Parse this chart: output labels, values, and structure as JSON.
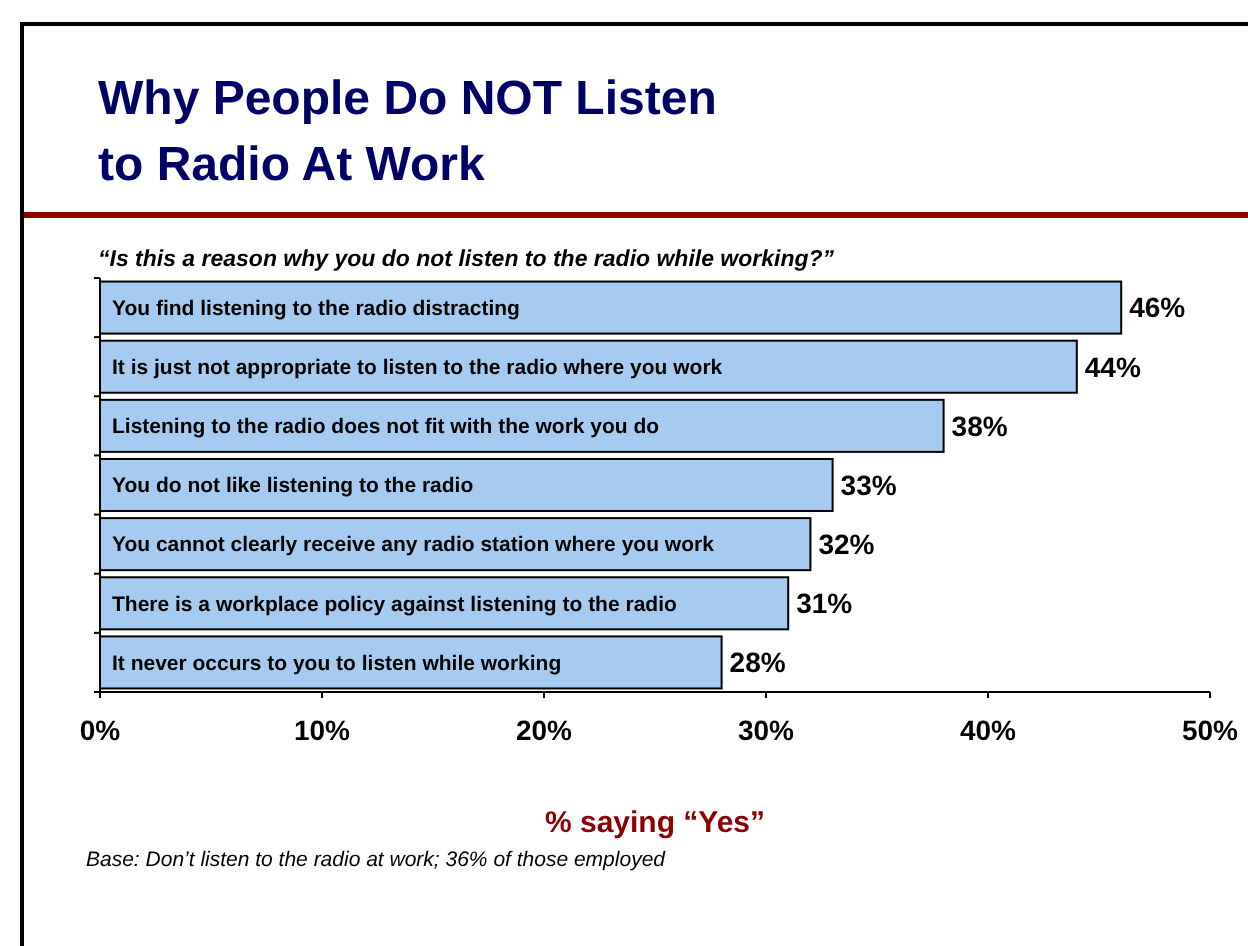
{
  "chart_data": {
    "type": "bar",
    "orientation": "horizontal",
    "title": "Why People Do NOT Listen to Radio At Work",
    "subtitle": "“Is this a reason why you do not listen to the radio while working?”",
    "xlabel": "% saying “Yes”",
    "annotations": [
      "Base: Don’t listen to the radio at work; 36% of those employed"
    ],
    "categories": [
      "You find listening to the radio distracting",
      "It is just not appropriate to listen to the radio where you work",
      "Listening to the radio does not fit with the work you do",
      "You do not like listening to the radio",
      "You cannot clearly receive any radio station where you work",
      "There is a workplace policy against listening to the radio",
      "It never occurs to you to listen while working"
    ],
    "values": [
      46,
      44,
      38,
      33,
      32,
      31,
      28
    ],
    "color": "#a6caf0",
    "value_labels": [
      "46%",
      "44%",
      "38%",
      "33%",
      "32%",
      "31%",
      "28%"
    ],
    "xlim": [
      0,
      50
    ],
    "xticks": [
      {
        "value": 0,
        "label": "0%"
      },
      {
        "value": 10,
        "label": "10%"
      },
      {
        "value": 20,
        "label": "20%"
      },
      {
        "value": 30,
        "label": "30%"
      },
      {
        "value": 40,
        "label": "40%"
      },
      {
        "value": 50,
        "label": "50%"
      }
    ],
    "grid": false
  }
}
